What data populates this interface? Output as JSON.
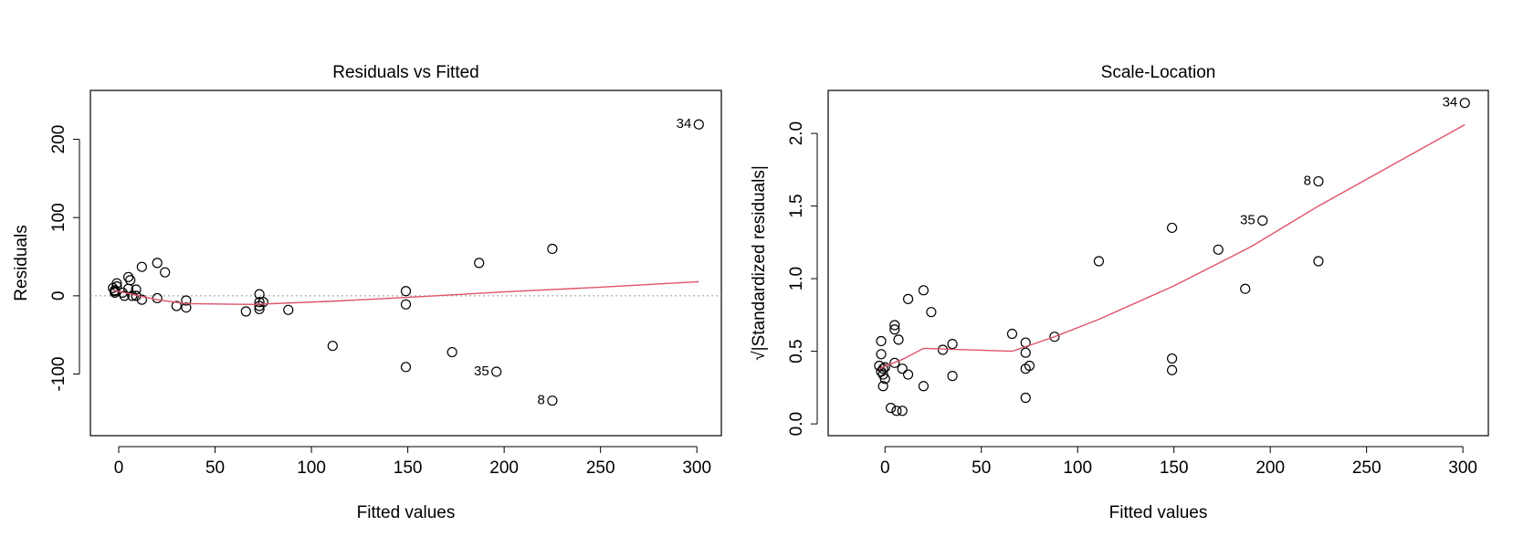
{
  "chart_data": [
    {
      "type": "scatter",
      "title": "Residuals vs Fitted",
      "x_label": "Fitted values",
      "y_label": "Residuals",
      "xlim": [
        -14.7,
        312.7
      ],
      "ylim": [
        -178.75,
        262.5
      ],
      "xticks": [
        0,
        50,
        100,
        150,
        200,
        250,
        300
      ],
      "yticks": [
        -100,
        0,
        100,
        200
      ],
      "reference_line": 0,
      "point_color": "#000000",
      "x": [
        -3,
        -2,
        -2,
        -1,
        -1,
        -2,
        2,
        3,
        5,
        6,
        5,
        7,
        9,
        9,
        12,
        12,
        20,
        20,
        24,
        30,
        35,
        35,
        66,
        73,
        73,
        73,
        73,
        75,
        88,
        111,
        149,
        149,
        149,
        173,
        187,
        196,
        225,
        225,
        301
      ],
      "values": [
        10,
        7,
        4,
        16,
        12,
        6,
        4,
        0,
        24,
        20,
        9,
        0,
        8,
        0,
        37,
        -5,
        42,
        -3,
        30,
        -13,
        -6,
        -15,
        -20,
        2,
        -8,
        -13,
        -17,
        -8,
        -18,
        -64,
        6,
        -11,
        -91,
        -72,
        42,
        -97,
        60,
        -134,
        219
      ],
      "smooth": {
        "color": "#df536b",
        "x": [
          -3,
          5,
          20,
          35,
          70,
          110,
          150,
          200,
          250,
          301
        ],
        "values": [
          7,
          3,
          -5,
          -10,
          -11,
          -7,
          -2,
          5,
          11,
          18
        ]
      },
      "point_labels": [
        {
          "text": "34",
          "x": 301,
          "y": 219
        },
        {
          "text": "35",
          "x": 196,
          "y": -97
        },
        {
          "text": "8",
          "x": 225,
          "y": -134
        }
      ]
    },
    {
      "type": "scatter",
      "title": "Scale-Location",
      "x_label": "Fitted values",
      "y_label": "√|Standardized residuals|",
      "xlim": [
        -29.5,
        313.2
      ],
      "ylim": [
        -0.081,
        2.296
      ],
      "xticks": [
        0,
        50,
        100,
        150,
        200,
        250,
        300
      ],
      "yticks": [
        {
          "value": 0,
          "label": "0.0"
        },
        0.5,
        {
          "value": 1,
          "label": "1.0"
        },
        1.5,
        {
          "value": 2,
          "label": "2.0"
        }
      ],
      "point_color": "#000000",
      "x": [
        -3,
        -2,
        -2,
        -1,
        -1,
        -2,
        0,
        0,
        -1,
        3,
        5,
        5,
        5,
        6,
        7,
        9,
        9,
        12,
        12,
        20,
        20,
        24,
        30,
        35,
        35,
        66,
        73,
        73,
        73,
        73,
        75,
        88,
        111,
        149,
        149,
        149,
        173,
        187,
        196,
        225,
        225,
        301
      ],
      "values": [
        0.4,
        0.48,
        0.57,
        0.38,
        0.26,
        0.36,
        0.31,
        0.39,
        0.34,
        0.11,
        0.68,
        0.65,
        0.42,
        0.09,
        0.58,
        0.09,
        0.38,
        0.86,
        0.34,
        0.92,
        0.26,
        0.77,
        0.51,
        0.55,
        0.33,
        0.62,
        0.56,
        0.49,
        0.38,
        0.18,
        0.4,
        0.6,
        1.12,
        1.35,
        0.45,
        0.37,
        1.2,
        0.93,
        1.4,
        1.67,
        1.12,
        2.21
      ],
      "smooth": {
        "color": "#df536b",
        "x": [
          -3,
          10,
          20,
          66,
          88,
          111,
          150,
          190,
          225,
          301
        ],
        "values": [
          0.38,
          0.45,
          0.52,
          0.5,
          0.6,
          0.72,
          0.95,
          1.22,
          1.5,
          2.06
        ]
      },
      "point_labels": [
        {
          "text": "34",
          "x": 301,
          "y": 2.21
        },
        {
          "text": "35",
          "x": 196,
          "y": 1.4
        },
        {
          "text": "8",
          "x": 225,
          "y": 1.67
        }
      ]
    }
  ]
}
